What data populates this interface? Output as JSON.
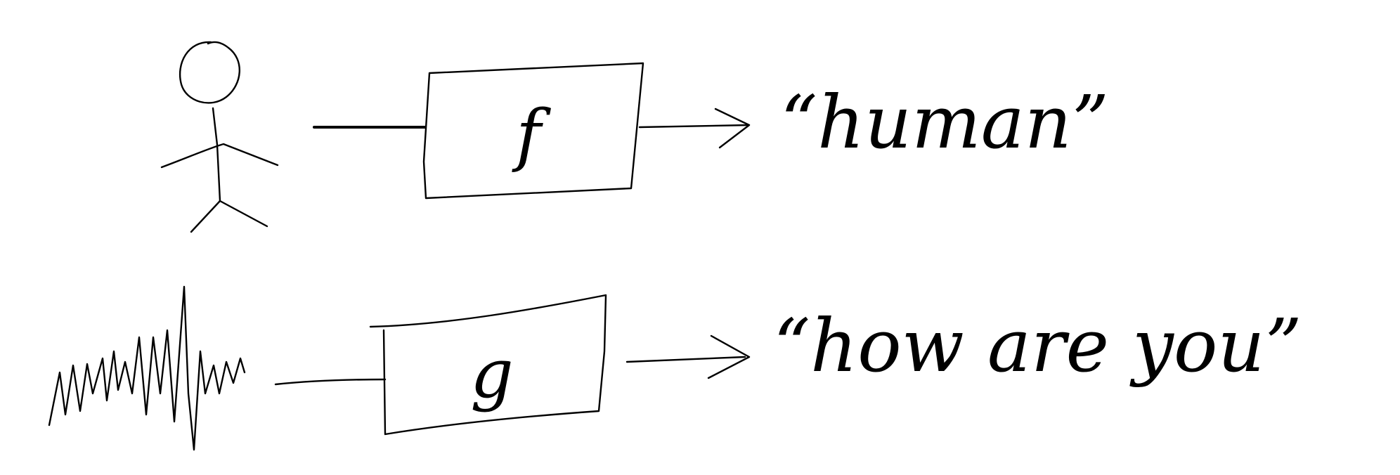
{
  "rows": [
    {
      "input_icon": "stick-figure-icon",
      "function_label": "f",
      "output_text": "“human”"
    },
    {
      "input_icon": "waveform-icon",
      "function_label": "g",
      "output_text": "“how are you”"
    }
  ]
}
